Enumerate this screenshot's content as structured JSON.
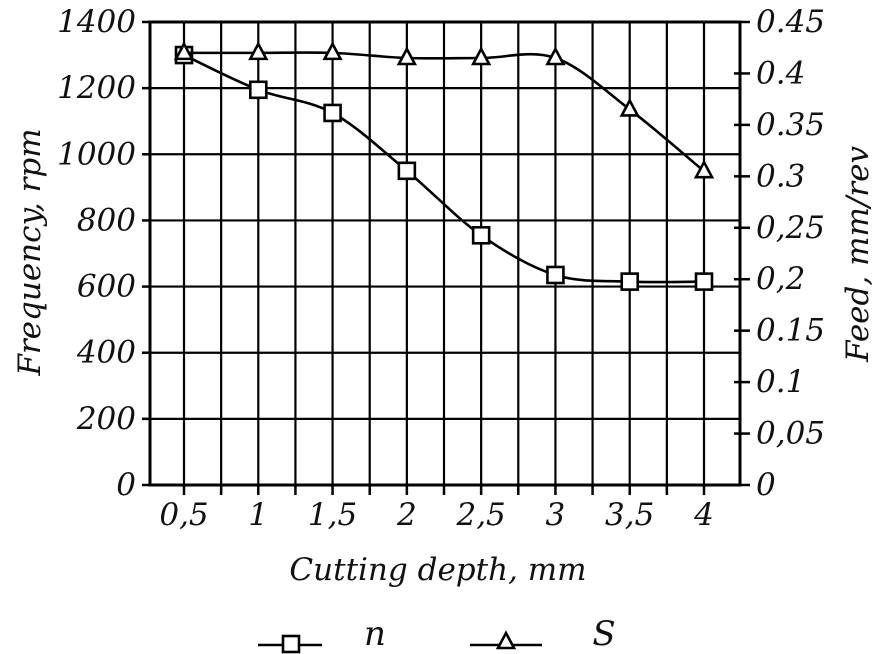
{
  "chart_data": {
    "type": "line",
    "xlabel": "Cutting depth, mm",
    "ylabel_left": "Frequency, rpm",
    "ylabel_right": "Feed, mm/rev",
    "x_tick_labels": [
      "0,5",
      "1",
      "1,5",
      "2",
      "2,5",
      "3",
      "3,5",
      "4"
    ],
    "x": [
      0.5,
      1,
      1.5,
      2,
      2.5,
      3,
      3.5,
      4
    ],
    "y_left_ticks": [
      "0",
      "200",
      "400",
      "600",
      "800",
      "1000",
      "1200",
      "1400"
    ],
    "y_left_lim": [
      0,
      1400
    ],
    "y_right_ticks": [
      "0",
      "0,05",
      "0.1",
      "0.15",
      "0,2",
      "0,25",
      "0.3",
      "0.35",
      "0.4",
      "0.45"
    ],
    "y_right_lim": [
      0,
      0.45
    ],
    "grid": true,
    "legend_position": "bottom",
    "series": [
      {
        "name": "n",
        "axis": "left",
        "marker": "square",
        "values": [
          1300,
          1195,
          1125,
          950,
          755,
          635,
          615,
          615
        ]
      },
      {
        "name": "S",
        "axis": "right",
        "marker": "triangle",
        "values": [
          0.42,
          0.42,
          0.42,
          0.415,
          0.415,
          0.415,
          0.365,
          0.305
        ]
      }
    ]
  }
}
